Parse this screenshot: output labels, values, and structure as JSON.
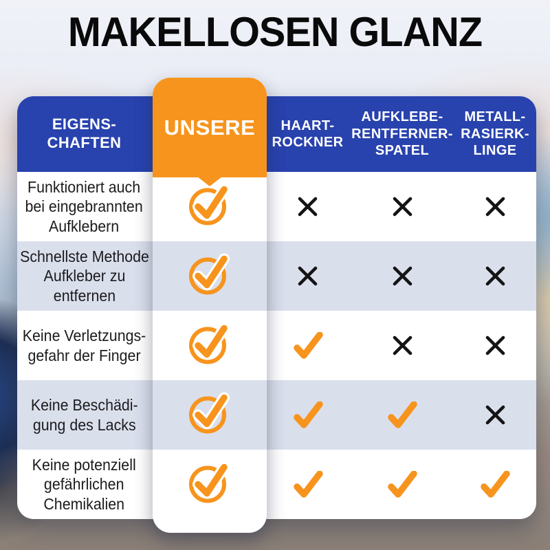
{
  "title": "MAKELLOSEN GLANZ",
  "colors": {
    "accent_blue": "#2842ae",
    "accent_orange": "#f7941d",
    "row_alt_gray": "#dadfec",
    "row_white": "#ffffff",
    "cross_black": "#141414",
    "header_text": "#ffffff",
    "feature_text": "#1b1b1d",
    "title_text": "#0a0a0b"
  },
  "table": {
    "features_header": {
      "lines": [
        "EIGENS-",
        "CHAFTEN"
      ]
    },
    "our_column": {
      "label": "UNSERE"
    },
    "competitor_columns": [
      {
        "lines": [
          "HAART-",
          "ROCKNER"
        ]
      },
      {
        "lines": [
          "AUFKLEBE-",
          "RENTFERNER-",
          "SPATEL"
        ]
      },
      {
        "lines": [
          "METALL-",
          "RASIERK-",
          "LINGE"
        ]
      }
    ],
    "rows": [
      {
        "feature_lines": [
          "Funktioniert auch",
          "bei eingebrannten",
          "Aufklebern"
        ],
        "ours": "check-circle",
        "values": [
          "cross",
          "cross",
          "cross"
        ]
      },
      {
        "feature_lines": [
          "Schnellste Methode",
          "Aufkleber zu",
          "entfernen"
        ],
        "ours": "check-circle",
        "values": [
          "cross",
          "cross",
          "cross"
        ]
      },
      {
        "feature_lines": [
          "Keine Verletzungs-",
          "gefahr der Finger"
        ],
        "ours": "check-circle",
        "values": [
          "check",
          "cross",
          "cross"
        ]
      },
      {
        "feature_lines": [
          "Keine Beschädi-",
          "gung des Lacks"
        ],
        "ours": "check-circle",
        "values": [
          "check",
          "check",
          "cross"
        ]
      },
      {
        "feature_lines": [
          "Keine potenziell",
          "gefährlichen",
          "Chemikalien"
        ],
        "ours": "check-circle",
        "values": [
          "check",
          "check",
          "check"
        ]
      }
    ]
  }
}
